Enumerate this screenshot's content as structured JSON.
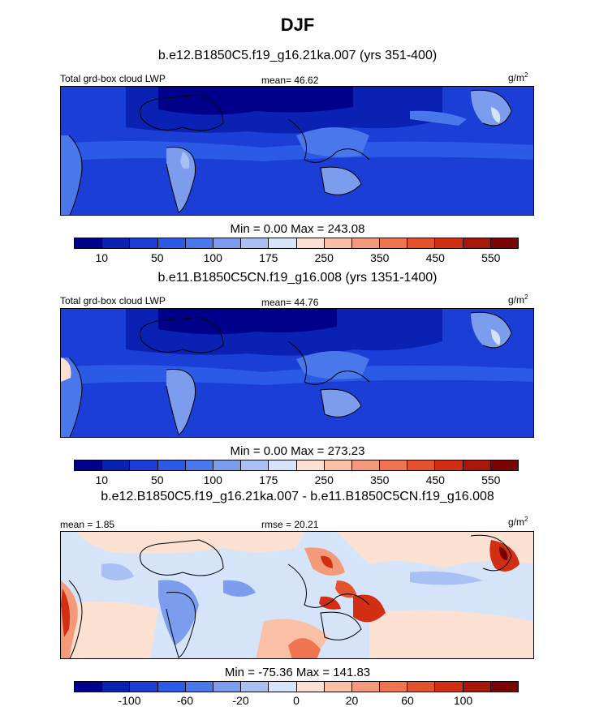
{
  "title": "DJF",
  "units": "g/m",
  "units_sup": "2",
  "panel1": {
    "subtitle": "b.e12.B1850C5.f19_g16.21ka.007 (yrs 351-400)",
    "left_label": "Total grd-box cloud LWP",
    "mean_label": "mean=  46.62",
    "minmax": "Min =   0.00 Max = 243.08"
  },
  "panel2": {
    "subtitle": "b.e11.B1850C5CN.f19_g16.008 (yrs 1351-1400)",
    "left_label": "Total grd-box cloud LWP",
    "mean_label": "mean=  44.76",
    "minmax": "Min =   0.00 Max = 273.23"
  },
  "panel3": {
    "subtitle": "b.e12.B1850C5.f19_g16.21ka.007 - b.e11.B1850C5CN.f19_g16.008",
    "left_label": "mean =   1.85",
    "rmse_label": "rmse =  20.21",
    "minmax": "Min = -75.36 Max = 141.83"
  },
  "colorbar_abs": {
    "colors": [
      "#00008B",
      "#0A22B4",
      "#1A3ED6",
      "#2A5AE6",
      "#4A78EA",
      "#7C9DEE",
      "#A8C0F4",
      "#D6E4FA",
      "#FCE0D2",
      "#F9C0A6",
      "#F39A7A",
      "#EE7550",
      "#E5502D",
      "#D22E14",
      "#A8180A",
      "#7A0303"
    ],
    "ticks": [
      "10",
      "50",
      "100",
      "175",
      "250",
      "350",
      "450",
      "550"
    ]
  },
  "colorbar_diff": {
    "colors": [
      "#00008B",
      "#0A22B4",
      "#1A3ED6",
      "#2A5AE6",
      "#4A78EA",
      "#7C9DEE",
      "#A8C0F4",
      "#D6E4FA",
      "#FCE0D2",
      "#F9C0A6",
      "#F39A7A",
      "#EE7550",
      "#E5502D",
      "#D22E14",
      "#A8180A",
      "#7A0303"
    ],
    "ticks": [
      "-100",
      "-60",
      "-20",
      "0",
      "20",
      "60",
      "100"
    ]
  },
  "chart_data": [
    {
      "type": "heatmap",
      "title": "b.e12.B1850C5.f19_g16.21ka.007 (yrs 351-400)",
      "variable": "Total grd-box cloud LWP",
      "units": "g/m2",
      "mean": 46.62,
      "min": 0.0,
      "max": 243.08,
      "colorbar_levels": [
        10,
        50,
        100,
        175,
        250,
        350,
        450,
        550
      ]
    },
    {
      "type": "heatmap",
      "title": "b.e11.B1850C5CN.f19_g16.008 (yrs 1351-1400)",
      "variable": "Total grd-box cloud LWP",
      "units": "g/m2",
      "mean": 44.76,
      "min": 0.0,
      "max": 273.23,
      "colorbar_levels": [
        10,
        50,
        100,
        175,
        250,
        350,
        450,
        550
      ]
    },
    {
      "type": "heatmap",
      "title": "b.e12.B1850C5.f19_g16.21ka.007 - b.e11.B1850C5CN.f19_g16.008",
      "units": "g/m2",
      "mean": 1.85,
      "rmse": 20.21,
      "min": -75.36,
      "max": 141.83,
      "colorbar_levels": [
        -100,
        -60,
        -20,
        0,
        20,
        60,
        100
      ]
    }
  ]
}
